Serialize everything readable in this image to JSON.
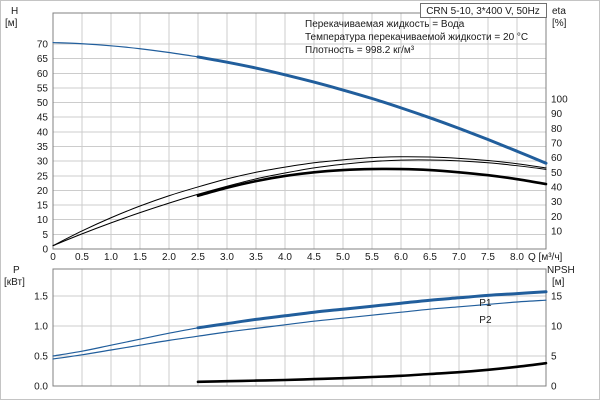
{
  "figure": {
    "title_box": "CRN 5-10, 3*400 V, 50Hz",
    "info_lines": [
      "Перекачиваемая жидкость = Вода",
      "Температура перекачиваемой жидкости = 20 °C",
      "Плотность = 998.2 кг/м³"
    ]
  },
  "colors": {
    "blue": "#215e9c",
    "black": "#000000",
    "grid": "#cccccc",
    "frame": "#808080",
    "text": "#1a1a1a"
  },
  "chart_data": [
    {
      "name": "head-efficiency-chart",
      "type": "line",
      "xlabel": "Q [м³/ч]",
      "ylabel_left": {
        "text": "H",
        "unit": "[м]"
      },
      "ylabel_right": {
        "text": "eta",
        "unit": "[%]"
      },
      "xlim": [
        0,
        8.5
      ],
      "x_ticks": [
        0,
        0.5,
        1,
        1.5,
        2,
        2.5,
        3,
        3.5,
        4,
        4.5,
        5,
        5.5,
        6,
        6.5,
        7,
        7.5,
        8
      ],
      "x_tick_labels": [
        "0",
        "0.5",
        "1.0",
        "1.5",
        "2.0",
        "2.5",
        "3.0",
        "3.5",
        "4.0",
        "4.5",
        "5.0",
        "5.5",
        "6.0",
        "6.5",
        "7.0",
        "7.5",
        "8.0"
      ],
      "ylim_left": [
        0,
        80.6
      ],
      "y_ticks_left": [
        0,
        5,
        10,
        15,
        20,
        25,
        30,
        35,
        40,
        45,
        50,
        55,
        60,
        65,
        70
      ],
      "y_tick_labels_left": [
        "0",
        "5",
        "10",
        "15",
        "20",
        "25",
        "30",
        "35",
        "40",
        "45",
        "50",
        "55",
        "60",
        "65",
        "70"
      ],
      "ylim_right": [
        -2.3,
        158.6
      ],
      "y_ticks_right": [
        10,
        20,
        30,
        40,
        50,
        60,
        70,
        80,
        90,
        100
      ],
      "y_tick_labels_right": [
        "10",
        "20",
        "30",
        "40",
        "50",
        "60",
        "70",
        "80",
        "90",
        "100"
      ],
      "grid": true,
      "series": [
        {
          "name": "head-curve-thin",
          "axis": "left",
          "color": "blue",
          "width": 1.2,
          "points": [
            [
              0,
              70.5
            ],
            [
              0.5,
              70.1
            ],
            [
              1,
              69.4
            ],
            [
              1.5,
              68.4
            ],
            [
              2,
              67.1
            ],
            [
              2.5,
              65.6
            ]
          ]
        },
        {
          "name": "head-curve-bold",
          "axis": "left",
          "color": "blue",
          "width": 3,
          "points": [
            [
              2.5,
              65.6
            ],
            [
              3,
              63.8
            ],
            [
              3.5,
              61.8
            ],
            [
              4,
              59.5
            ],
            [
              4.5,
              57
            ],
            [
              5,
              54.3
            ],
            [
              5.5,
              51.4
            ],
            [
              6,
              48.2
            ],
            [
              6.5,
              44.8
            ],
            [
              7,
              41.2
            ],
            [
              7.5,
              37.4
            ],
            [
              8,
              33.4
            ],
            [
              8.5,
              29.3
            ]
          ]
        },
        {
          "name": "eta-curve-1",
          "axis": "right",
          "color": "black",
          "width": 1,
          "points": [
            [
              0,
              0
            ],
            [
              0.5,
              10
            ],
            [
              1,
              19
            ],
            [
              1.5,
              27
            ],
            [
              2,
              34
            ],
            [
              2.5,
              40
            ],
            [
              3,
              45.5
            ],
            [
              3.5,
              50
            ],
            [
              4,
              53.5
            ],
            [
              4.5,
              56.5
            ],
            [
              5,
              58.5
            ],
            [
              5.5,
              60
            ],
            [
              6,
              60.6
            ],
            [
              6.5,
              60.4
            ],
            [
              7,
              59.5
            ],
            [
              7.5,
              58
            ],
            [
              8,
              55.8
            ],
            [
              8.5,
              53
            ]
          ]
        },
        {
          "name": "eta-curve-2",
          "axis": "right",
          "color": "black",
          "width": 1,
          "points": [
            [
              0,
              0
            ],
            [
              0.5,
              8
            ],
            [
              1,
              15.5
            ],
            [
              1.5,
              22.5
            ],
            [
              2,
              29
            ],
            [
              2.5,
              35
            ],
            [
              3,
              40.5
            ],
            [
              3.5,
              45.5
            ],
            [
              4,
              49.5
            ],
            [
              4.5,
              53
            ],
            [
              5,
              55.5
            ],
            [
              5.5,
              57.3
            ],
            [
              6,
              58.3
            ],
            [
              6.5,
              58.4
            ],
            [
              7,
              57.8
            ],
            [
              7.5,
              56.5
            ],
            [
              8,
              54.5
            ],
            [
              8.5,
              52
            ]
          ]
        },
        {
          "name": "eta-curve-bold",
          "axis": "right",
          "color": "black",
          "width": 2.6,
          "points": [
            [
              2.5,
              34
            ],
            [
              3,
              39.5
            ],
            [
              3.5,
              44
            ],
            [
              4,
              47.5
            ],
            [
              4.5,
              50
            ],
            [
              5,
              51.5
            ],
            [
              5.5,
              52.2
            ],
            [
              6,
              52.2
            ],
            [
              6.5,
              51.5
            ],
            [
              7,
              50
            ],
            [
              7.5,
              48
            ],
            [
              8,
              45.3
            ],
            [
              8.5,
              42
            ]
          ]
        }
      ],
      "annotations": []
    },
    {
      "name": "power-npsh-chart",
      "type": "line",
      "xlabel": "",
      "ylabel_left": {
        "text": "P",
        "unit": "[кВт]"
      },
      "ylabel_right": {
        "text": "NPSH",
        "unit": "[м]"
      },
      "xlim": [
        0,
        8.5
      ],
      "x_ticks": [
        0,
        0.5,
        1,
        1.5,
        2,
        2.5,
        3,
        3.5,
        4,
        4.5,
        5,
        5.5,
        6,
        6.5,
        7,
        7.5,
        8
      ],
      "x_tick_labels": [],
      "ylim_left": [
        0,
        1.95
      ],
      "y_ticks_left": [
        0,
        0.5,
        1,
        1.5
      ],
      "y_tick_labels_left": [
        "0.0",
        "0.5",
        "1.0",
        "1.5"
      ],
      "ylim_right": [
        0,
        19.5
      ],
      "y_ticks_right": [
        0,
        5,
        10,
        15
      ],
      "y_tick_labels_right": [
        "0",
        "5",
        "10",
        "15"
      ],
      "grid": true,
      "series": [
        {
          "name": "p1-curve-thin",
          "axis": "left",
          "color": "blue",
          "width": 1.2,
          "points": [
            [
              0,
              0.5
            ],
            [
              0.5,
              0.58
            ],
            [
              1,
              0.68
            ],
            [
              1.5,
              0.78
            ],
            [
              2,
              0.88
            ],
            [
              2.5,
              0.97
            ]
          ]
        },
        {
          "name": "p1-curve-bold",
          "axis": "left",
          "color": "blue",
          "width": 3,
          "points": [
            [
              2.5,
              0.97
            ],
            [
              3,
              1.04
            ],
            [
              3.5,
              1.11
            ],
            [
              4,
              1.17
            ],
            [
              4.5,
              1.23
            ],
            [
              5,
              1.28
            ],
            [
              5.5,
              1.33
            ],
            [
              6,
              1.38
            ],
            [
              6.5,
              1.43
            ],
            [
              7,
              1.47
            ],
            [
              7.5,
              1.51
            ],
            [
              8,
              1.54
            ],
            [
              8.5,
              1.57
            ]
          ]
        },
        {
          "name": "p2-curve",
          "axis": "left",
          "color": "blue",
          "width": 1.2,
          "points": [
            [
              0,
              0.45
            ],
            [
              0.5,
              0.52
            ],
            [
              1,
              0.6
            ],
            [
              1.5,
              0.68
            ],
            [
              2,
              0.76
            ],
            [
              2.5,
              0.83
            ],
            [
              3,
              0.9
            ],
            [
              3.5,
              0.96
            ],
            [
              4,
              1.02
            ],
            [
              4.5,
              1.08
            ],
            [
              5,
              1.13
            ],
            [
              5.5,
              1.18
            ],
            [
              6,
              1.23
            ],
            [
              6.5,
              1.28
            ],
            [
              7,
              1.32
            ],
            [
              7.5,
              1.36
            ],
            [
              8,
              1.4
            ],
            [
              8.5,
              1.43
            ]
          ]
        },
        {
          "name": "npsh-curve-bold",
          "axis": "right",
          "color": "black",
          "width": 2.6,
          "points": [
            [
              2.5,
              0.7
            ],
            [
              3,
              0.8
            ],
            [
              3.5,
              0.9
            ],
            [
              4,
              1.0
            ],
            [
              4.5,
              1.15
            ],
            [
              5,
              1.3
            ],
            [
              5.5,
              1.5
            ],
            [
              6,
              1.7
            ],
            [
              6.5,
              2.0
            ],
            [
              7,
              2.3
            ],
            [
              7.5,
              2.7
            ],
            [
              8,
              3.2
            ],
            [
              8.5,
              3.8
            ]
          ]
        }
      ],
      "annotations": [
        {
          "text": "P1",
          "x": 7.35,
          "y": 1.38,
          "axis": "left",
          "color": "blue"
        },
        {
          "text": "P2",
          "x": 7.35,
          "y": 1.1,
          "axis": "left",
          "color": "blue"
        }
      ]
    }
  ]
}
